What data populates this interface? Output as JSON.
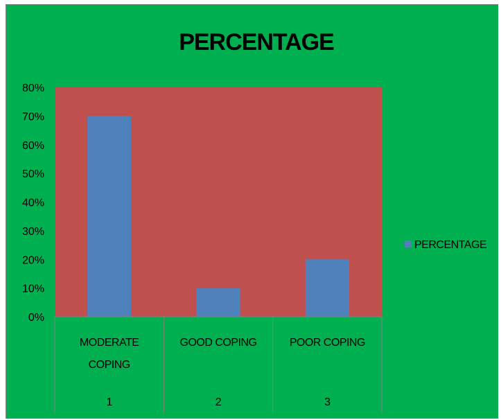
{
  "chart_data": {
    "type": "bar",
    "title": "PERCENTAGE",
    "categories": [
      "MODERATE COPING",
      "GOOD COPING",
      "POOR COPING"
    ],
    "category_numbers": [
      "1",
      "2",
      "3"
    ],
    "series": [
      {
        "name": "PERCENTAGE",
        "values": [
          0.7,
          0.1,
          0.2
        ],
        "color": "#4f81bd"
      }
    ],
    "y_ticks": [
      "0%",
      "10%",
      "20%",
      "30%",
      "40%",
      "50%",
      "60%",
      "70%",
      "80%"
    ],
    "ylim": [
      0,
      0.8
    ],
    "xlabel": "",
    "ylabel": "",
    "legend_position": "right",
    "grid": false,
    "colors": {
      "chart_background": "#00b050",
      "plot_background": "#c0504d",
      "bar": "#4f81bd"
    }
  }
}
